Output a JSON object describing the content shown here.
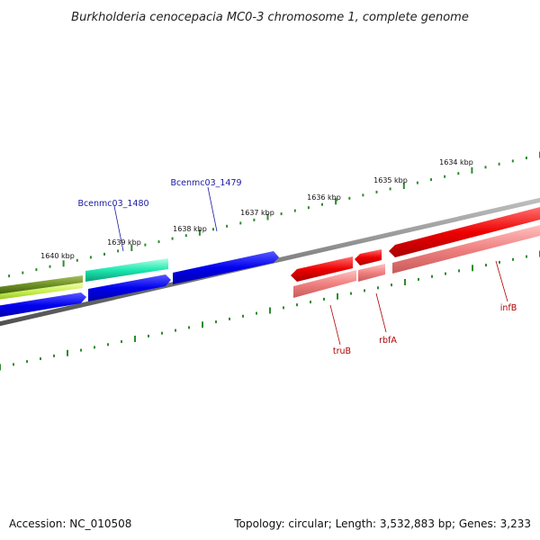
{
  "title": "Burkholderia cenocepacia MC0-3 chromosome 1, complete genome",
  "footer": {
    "accession": "Accession: NC_010508",
    "summary": "Topology: circular; Length: 3,532,883 bp; Genes: 3,233"
  },
  "ruler": {
    "color": "#2e8b2e",
    "labels": [
      "1640 kbp",
      "1639 kbp",
      "1638 kbp",
      "1637 kbp",
      "1636 kbp",
      "1635 kbp",
      "1634 kbp"
    ]
  },
  "backbone_color": "#808080",
  "genes_forward": [
    {
      "name": "Bcenmc03_1480",
      "color": "#1de8b0"
    },
    {
      "name": "Bcenmc03_1479",
      "color": "#0000ee"
    }
  ],
  "genes_reverse": [
    {
      "name": "truB",
      "color": "#ee0000"
    },
    {
      "name": "rbfA",
      "color": "#ee0000"
    },
    {
      "name": "infB",
      "color": "#ee0000"
    }
  ],
  "other_features": [
    {
      "color": "#6b8e23"
    },
    {
      "color": "#c8f050"
    },
    {
      "color": "#0000ee"
    },
    {
      "color": "#0000ee"
    }
  ]
}
